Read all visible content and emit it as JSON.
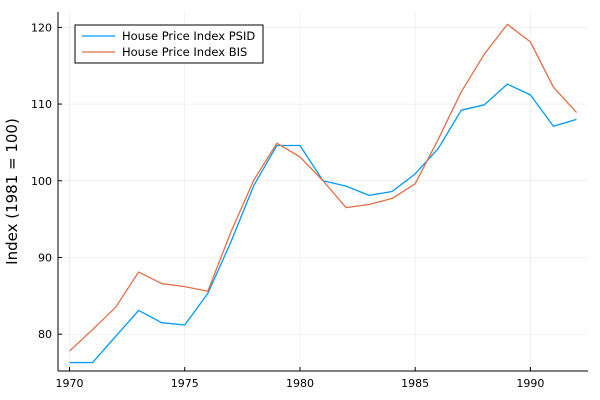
{
  "chart_data": {
    "type": "line",
    "title": "",
    "xlabel": "",
    "ylabel": "Index (1981 = 100)",
    "xlim": [
      1969.5,
      1992.5
    ],
    "ylim": [
      75.2,
      122
    ],
    "xticks": [
      1970,
      1975,
      1980,
      1985,
      1990
    ],
    "yticks": [
      80,
      90,
      100,
      110,
      120
    ],
    "grid": true,
    "legend_position": "top-left",
    "x": [
      1970,
      1971,
      1972,
      1973,
      1974,
      1975,
      1976,
      1977,
      1978,
      1979,
      1980,
      1981,
      1982,
      1983,
      1984,
      1985,
      1986,
      1987,
      1988,
      1989,
      1990,
      1991,
      1992
    ],
    "series": [
      {
        "name": "House Price Index PSID",
        "color": "#009af9",
        "values": [
          76.3,
          76.3,
          79.7,
          83.1,
          81.5,
          81.2,
          85.3,
          92.0,
          99.4,
          104.6,
          104.6,
          100.0,
          99.3,
          98.1,
          98.6,
          100.9,
          104.2,
          109.2,
          109.9,
          112.6,
          111.2,
          107.1,
          108.0
        ]
      },
      {
        "name": "House Price Index BIS",
        "color": "#e26f46",
        "values": [
          77.8,
          80.6,
          83.5,
          88.1,
          86.6,
          86.2,
          85.6,
          93.3,
          100.1,
          104.9,
          103.1,
          100.0,
          96.5,
          96.9,
          97.7,
          99.6,
          105.4,
          111.6,
          116.5,
          120.4,
          118.1,
          112.2,
          108.9
        ]
      }
    ]
  }
}
